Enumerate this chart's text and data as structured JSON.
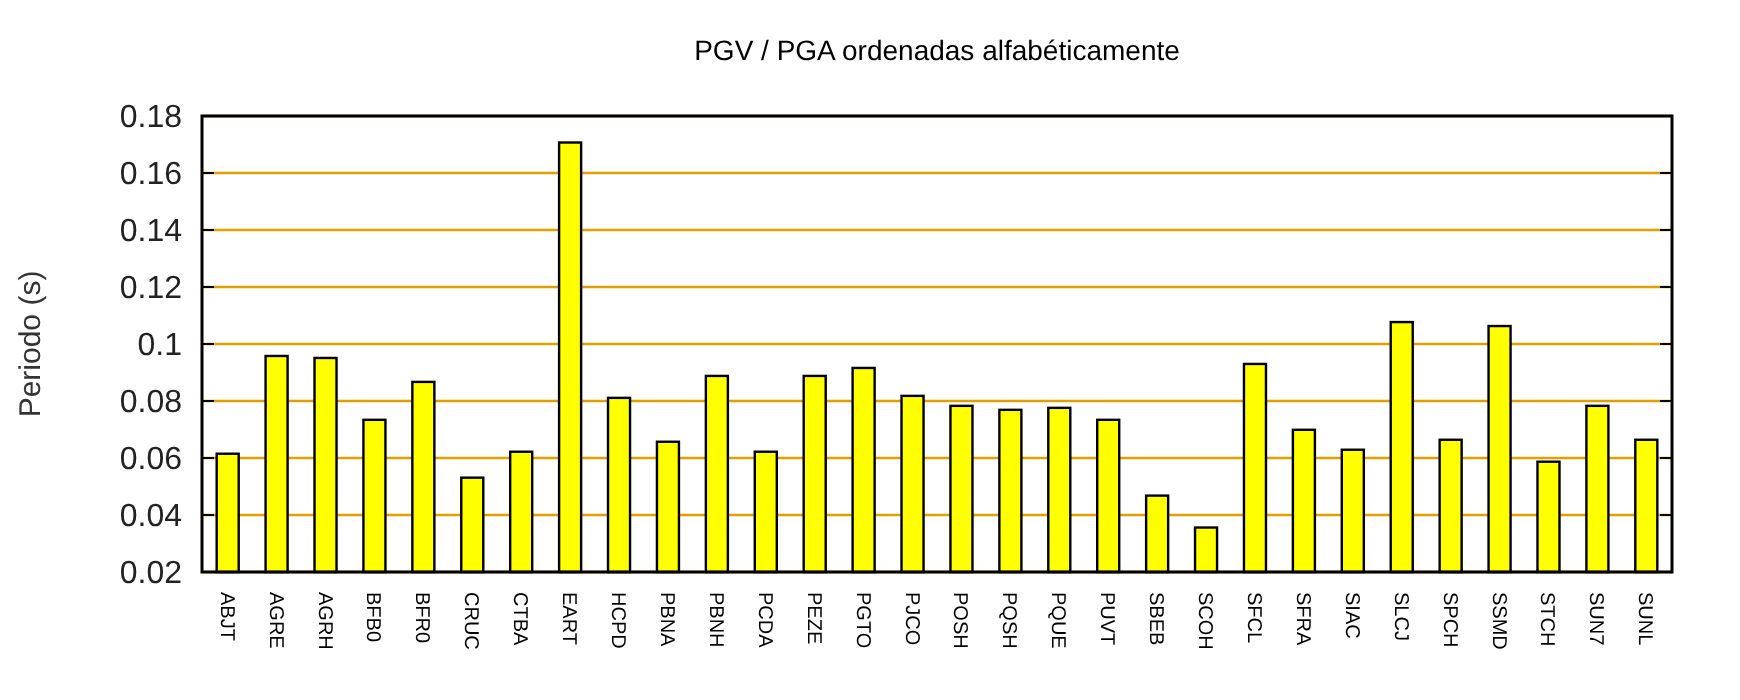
{
  "chart_data": {
    "type": "bar",
    "title": "PGV / PGA ordenadas alfabéticamente",
    "ylabel": "Periodo (s)",
    "categories": [
      "ABJT",
      "AGRE",
      "AGRH",
      "BFB0",
      "BFR0",
      "CRUC",
      "CTBA",
      "EART",
      "HCPD",
      "PBNA",
      "PBNH",
      "PCDA",
      "PEZE",
      "PGTO",
      "PJCO",
      "POSH",
      "PQSH",
      "PQUE",
      "PUVT",
      "SBEB",
      "SCOH",
      "SFCL",
      "SFRA",
      "SIAC",
      "SLCJ",
      "SPCH",
      "SSMD",
      "STCH",
      "SUN7",
      "SUNL"
    ],
    "values": [
      0.0615,
      0.0958,
      0.0951,
      0.0734,
      0.0867,
      0.0531,
      0.0622,
      0.1707,
      0.0811,
      0.0657,
      0.0888,
      0.0622,
      0.0888,
      0.0916,
      0.0818,
      0.0783,
      0.0769,
      0.0776,
      0.0734,
      0.0468,
      0.0356,
      0.093,
      0.0699,
      0.0629,
      0.1077,
      0.0664,
      0.1063,
      0.0587,
      0.0783,
      0.0664
    ],
    "color": "#ffff00",
    "ylim": [
      0.02,
      0.18
    ],
    "yticks": [
      0.02,
      0.04,
      0.06,
      0.08,
      0.1,
      0.12,
      0.14,
      0.16,
      0.18
    ],
    "grid": "y"
  }
}
